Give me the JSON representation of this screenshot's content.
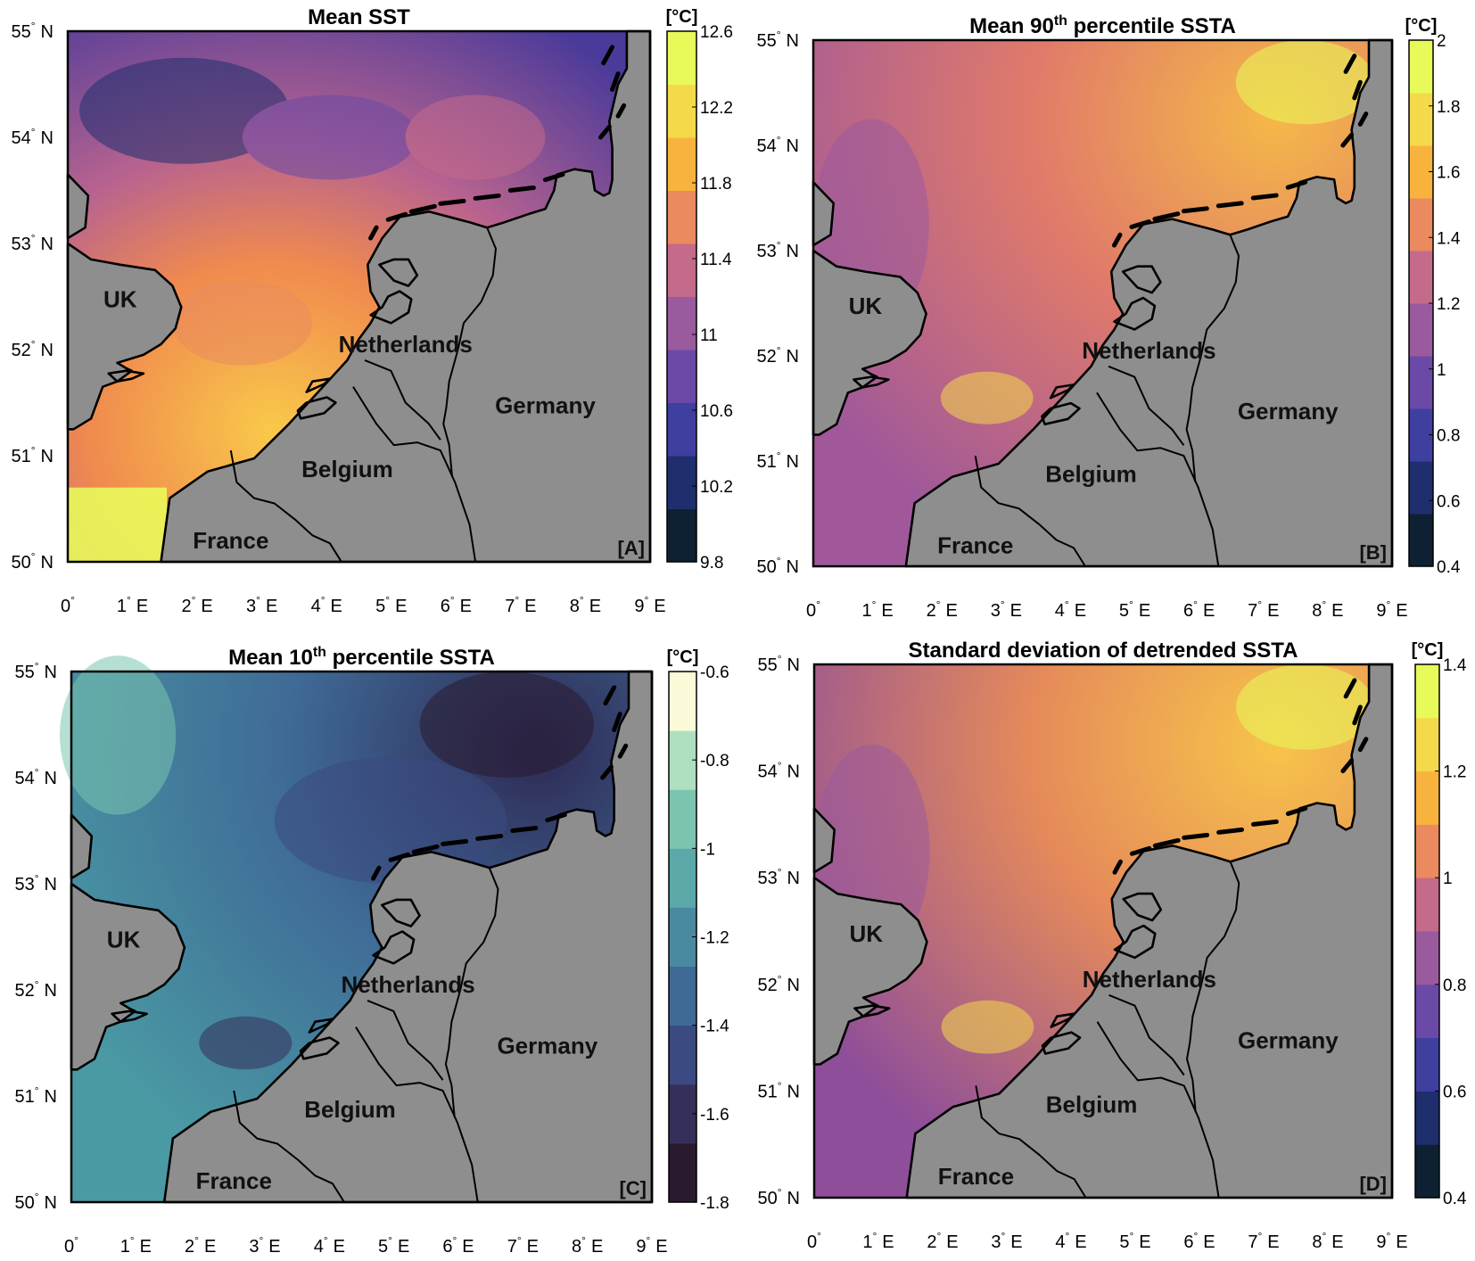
{
  "map": {
    "lat_labels": [
      "55",
      "54",
      "53",
      "52",
      "51",
      "50"
    ],
    "lat_suffix": "N",
    "lon_labels": [
      "0",
      "1",
      "2",
      "3",
      "4",
      "5",
      "6",
      "7",
      "8",
      "9"
    ],
    "lon_suffix": "E",
    "degree_symbol": "°",
    "extent": {
      "lon_min": 0,
      "lon_max": 9,
      "lat_min": 50,
      "lat_max": 55
    },
    "countries": [
      "UK",
      "Netherlands",
      "Germany",
      "Belgium",
      "France"
    ],
    "land_color": "#8e8e8e"
  },
  "panels": [
    {
      "id": "A",
      "title": "Mean SST",
      "label": "[A]",
      "colorbar": {
        "unit": "[°C]",
        "ticks": [
          "12.6",
          "12.2",
          "11.8",
          "11.4",
          "11",
          "10.6",
          "10.2",
          "9.8"
        ],
        "range": [
          9.8,
          12.6
        ],
        "colors": [
          "#0d2132",
          "#1f2f6e",
          "#3f3fa0",
          "#6a4aa6",
          "#9a5a9e",
          "#c46a8a",
          "#ea8a5e",
          "#f8b33e",
          "#f4d94a",
          "#e8f95a"
        ]
      },
      "field_colors": {
        "north": "#4a3a9a",
        "center": "#b8638f",
        "south": "#f9c94a"
      }
    },
    {
      "id": "B",
      "title": "Mean 90th percentile SSTA",
      "title_main": "Mean 90",
      "title_sup": "th",
      "title_rest": " percentile SSTA",
      "label": "[B]",
      "colorbar": {
        "unit": "[°C]",
        "ticks": [
          "2",
          "1.8",
          "1.6",
          "1.4",
          "1.2",
          "1",
          "0.8",
          "0.6",
          "0.4"
        ],
        "range": [
          0.4,
          2.0
        ],
        "colors": [
          "#0d2132",
          "#1f2f6e",
          "#3f3fa0",
          "#6a4aa6",
          "#9a5a9e",
          "#c46a8a",
          "#ea8a5e",
          "#f8b33e",
          "#f4d94a",
          "#e8f95a"
        ]
      },
      "field_colors": {
        "west": "#a0589a",
        "center": "#e07a6a",
        "east": "#f5b848"
      }
    },
    {
      "id": "C",
      "title": "Mean 10th percentile SSTA",
      "title_main": "Mean 10",
      "title_sup": "th",
      "title_rest": " percentile SSTA",
      "label": "[C]",
      "colorbar": {
        "unit": "[°C]",
        "ticks": [
          "-0.6",
          "-0.8",
          "-1",
          "-1.2",
          "-1.4",
          "-1.6",
          "-1.8"
        ],
        "range": [
          -1.8,
          -0.6
        ],
        "colors": [
          "#2a1a30",
          "#35305a",
          "#3b4a80",
          "#3f6a96",
          "#4a8aa0",
          "#5aa8a8",
          "#7ac4b0",
          "#aee0c0",
          "#fafad8"
        ]
      },
      "field_colors": {
        "west": "#4a9aa4",
        "center": "#3f6a96",
        "east": "#2e2a55"
      }
    },
    {
      "id": "D",
      "title": "Standard deviation of detrended SSTA",
      "label": "[D]",
      "colorbar": {
        "unit": "[°C]",
        "ticks": [
          "1.4",
          "1.2",
          "1",
          "0.8",
          "0.6",
          "0.4"
        ],
        "range": [
          0.4,
          1.4
        ],
        "colors": [
          "#0d2132",
          "#1f2f6e",
          "#3f3fa0",
          "#6a4aa6",
          "#9a5a9e",
          "#c46a8a",
          "#ea8a5e",
          "#f8b33e",
          "#f4d94a",
          "#e8f95a"
        ]
      },
      "field_colors": {
        "west": "#8e4e9a",
        "center": "#e58a5a",
        "east": "#f7c44a"
      }
    }
  ]
}
